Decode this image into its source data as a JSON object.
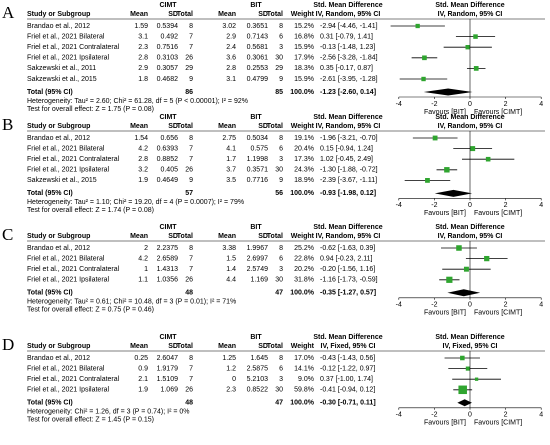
{
  "chart_data": [
    {
      "type": "forest",
      "label": "A",
      "groups": [
        "CIMT",
        "BIT"
      ],
      "columns": [
        "Study or Subgroup",
        "Mean",
        "SD",
        "Total",
        "Mean",
        "SD",
        "Total",
        "Weight"
      ],
      "effect_headers": [
        "Std. Mean Difference",
        "IV, Random, 95% CI"
      ],
      "plot_headers": [
        "Std. Mean Difference",
        "IV, Random, 95% CI"
      ],
      "studies": [
        {
          "name": "Brandao et al., 2012",
          "cimt": [
            1.59,
            0.5394,
            8
          ],
          "bit": [
            3.02,
            0.3651,
            8
          ],
          "weight": 15.2,
          "weight_label": "15.2%",
          "smd": -2.94,
          "ci": [
            -4.46,
            -1.41
          ],
          "ci_label": "-2.94 [-4.46, -1.41]"
        },
        {
          "name": "Friel et al., 2021 Bilateral",
          "cimt": [
            3.1,
            0.492,
            7
          ],
          "bit": [
            2.9,
            0.7143,
            6
          ],
          "weight": 16.8,
          "weight_label": "16.8%",
          "smd": 0.31,
          "ci": [
            -0.79,
            1.41
          ],
          "ci_label": "0.31 [-0.79, 1.41]"
        },
        {
          "name": "Friel et al., 2021 Contralateral",
          "cimt": [
            2.3,
            0.7516,
            7
          ],
          "bit": [
            2.4,
            0.5681,
            3
          ],
          "weight": 15.9,
          "weight_label": "15.9%",
          "smd": -0.13,
          "ci": [
            -1.48,
            1.23
          ],
          "ci_label": "-0.13 [-1.48, 1.23]"
        },
        {
          "name": "Friel et al., 2021 Ipsilateral",
          "cimt": [
            2.8,
            0.3103,
            26
          ],
          "bit": [
            3.6,
            0.3061,
            30
          ],
          "weight": 17.9,
          "weight_label": "17.9%",
          "smd": -2.56,
          "ci": [
            -3.28,
            -1.84
          ],
          "ci_label": "-2.56 [-3.28, -1.84]"
        },
        {
          "name": "Sakzewski et al., 2011",
          "cimt": [
            2.9,
            0.3057,
            29
          ],
          "bit": [
            2.8,
            0.2553,
            29
          ],
          "weight": 18.3,
          "weight_label": "18.3%",
          "smd": 0.35,
          "ci": [
            -0.17,
            0.87
          ],
          "ci_label": "0.35 [-0.17, 0.87]"
        },
        {
          "name": "Sakzewski et al., 2015",
          "cimt": [
            1.8,
            0.4682,
            9
          ],
          "bit": [
            3.1,
            0.4799,
            9
          ],
          "weight": 15.9,
          "weight_label": "15.9%",
          "smd": -2.61,
          "ci": [
            -3.95,
            -1.28
          ],
          "ci_label": "-2.61 [-3.95, -1.28]"
        }
      ],
      "total": {
        "name": "Total (95% CI)",
        "cimt_total": 86,
        "bit_total": 85,
        "weight": 100.0,
        "weight_label": "100.0%",
        "smd": -1.23,
        "ci": [
          -2.6,
          0.14
        ],
        "ci_label": "-1.23 [-2.60, 0.14]"
      },
      "heterogeneity": "Heterogeneity: Tau² = 2.60; Chi² = 61.28, df = 5 (P < 0.00001); I² = 92%",
      "overall_effect": "Test for overall effect: Z = 1.75 (P = 0.08)",
      "xlim": [
        -4,
        4
      ],
      "xticks": [
        -4,
        -2,
        0,
        2,
        4
      ],
      "favours": [
        "Favours [BIT]",
        "Favours [CIMT]"
      ]
    },
    {
      "type": "forest",
      "label": "B",
      "groups": [
        "CIMT",
        "BIT"
      ],
      "columns": [
        "Study or Subgroup",
        "Mean",
        "SD",
        "Total",
        "Mean",
        "SD",
        "Total",
        "Weight"
      ],
      "effect_headers": [
        "Std. Mean Difference",
        "IV, Random, 95% CI"
      ],
      "plot_headers": [
        "Std. Mean Difference",
        "IV, Random, 95% CI"
      ],
      "studies": [
        {
          "name": "Brandao et al., 2012",
          "cimt": [
            1.54,
            0.656,
            8
          ],
          "bit": [
            2.75,
            0.5034,
            8
          ],
          "weight": 19.1,
          "weight_label": "19.1%",
          "smd": -1.96,
          "ci": [
            -3.21,
            -0.7
          ],
          "ci_label": "-1.96 [-3.21, -0.70]"
        },
        {
          "name": "Friel et al., 2021 Bilateral",
          "cimt": [
            4.2,
            0.6393,
            7
          ],
          "bit": [
            4.1,
            0.575,
            6
          ],
          "weight": 20.4,
          "weight_label": "20.4%",
          "smd": 0.15,
          "ci": [
            -0.94,
            1.24
          ],
          "ci_label": "0.15 [-0.94, 1.24]"
        },
        {
          "name": "Friel et al., 2021 Contralateral",
          "cimt": [
            2.8,
            0.8852,
            7
          ],
          "bit": [
            1.7,
            1.1998,
            3
          ],
          "weight": 17.3,
          "weight_label": "17.3%",
          "smd": 1.02,
          "ci": [
            -0.45,
            2.49
          ],
          "ci_label": "1.02 [-0.45, 2.49]"
        },
        {
          "name": "Friel et al., 2021 Ipsilateral",
          "cimt": [
            3.2,
            0.405,
            26
          ],
          "bit": [
            3.7,
            0.3571,
            30
          ],
          "weight": 24.3,
          "weight_label": "24.3%",
          "smd": -1.3,
          "ci": [
            -1.88,
            -0.72
          ],
          "ci_label": "-1.30 [-1.88, -0.72]"
        },
        {
          "name": "Sakzewski et al., 2015",
          "cimt": [
            1.9,
            0.4649,
            9
          ],
          "bit": [
            3.5,
            0.7716,
            9
          ],
          "weight": 18.9,
          "weight_label": "18.9%",
          "smd": -2.39,
          "ci": [
            -3.67,
            -1.11
          ],
          "ci_label": "-2.39 [-3.67, -1.11]"
        }
      ],
      "total": {
        "name": "Total (95% CI)",
        "cimt_total": 57,
        "bit_total": 56,
        "weight": 100.0,
        "weight_label": "100.0%",
        "smd": -0.93,
        "ci": [
          -1.98,
          0.12
        ],
        "ci_label": "-0.93 [-1.98, 0.12]"
      },
      "heterogeneity": "Heterogeneity: Tau² = 1.10; Chi² = 19.20, df = 4 (P = 0.0007); I² = 79%",
      "overall_effect": "Test for overall effect: Z = 1.74 (P = 0.08)",
      "xlim": [
        -4,
        4
      ],
      "xticks": [
        -4,
        -2,
        0,
        2,
        4
      ],
      "favours": [
        "Favours [BIT]",
        "Favours [CIMT]"
      ]
    },
    {
      "type": "forest",
      "label": "C",
      "groups": [
        "CIMT",
        "BIT"
      ],
      "columns": [
        "Study or Subgroup",
        "Mean",
        "SD",
        "Total",
        "Mean",
        "SD",
        "Total",
        "Weight"
      ],
      "effect_headers": [
        "Std. Mean Difference",
        "IV, Random, 95% CI"
      ],
      "plot_headers": [
        "Std. Mean Difference",
        "IV, Random, 95% CI"
      ],
      "studies": [
        {
          "name": "Brandao et al., 2012",
          "cimt": [
            2,
            2.2375,
            8
          ],
          "bit": [
            3.38,
            1.9967,
            8
          ],
          "weight": 25.2,
          "weight_label": "25.2%",
          "smd": -0.62,
          "ci": [
            -1.63,
            0.39
          ],
          "ci_label": "-0.62 [-1.63, 0.39]"
        },
        {
          "name": "Friel et al., 2021 Bilateral",
          "cimt": [
            4.2,
            2.6589,
            7
          ],
          "bit": [
            1.5,
            2.6997,
            6
          ],
          "weight": 22.8,
          "weight_label": "22.8%",
          "smd": 0.94,
          "ci": [
            -0.23,
            2.11
          ],
          "ci_label": "0.94 [-0.23, 2.11]"
        },
        {
          "name": "Friel et al., 2021 Contralateral",
          "cimt": [
            1,
            1.4313,
            7
          ],
          "bit": [
            1.4,
            2.5749,
            3
          ],
          "weight": 20.2,
          "weight_label": "20.2%",
          "smd": -0.2,
          "ci": [
            -1.56,
            1.16
          ],
          "ci_label": "-0.20 [-1.56, 1.16]"
        },
        {
          "name": "Friel et al., 2021 Ipsilateral",
          "cimt": [
            1.1,
            1.0356,
            26
          ],
          "bit": [
            4.4,
            1.169,
            30
          ],
          "weight": 31.8,
          "weight_label": "31.8%",
          "smd": -1.16,
          "ci": [
            -1.73,
            -0.59
          ],
          "ci_label": "-1.16 [-1.73, -0.59]"
        }
      ],
      "total": {
        "name": "Total (95% CI)",
        "cimt_total": 48,
        "bit_total": 47,
        "weight": 100.0,
        "weight_label": "100.0%",
        "smd": -0.35,
        "ci": [
          -1.27,
          0.57
        ],
        "ci_label": "-0.35 [-1.27, 0.57]"
      },
      "heterogeneity": "Heterogeneity: Tau² = 0.61; Chi² = 10.48, df = 3 (P = 0.01); I² = 71%",
      "overall_effect": "Test for overall effect: Z = 0.75 (P = 0.46)",
      "xlim": [
        -4,
        4
      ],
      "xticks": [
        -4,
        -2,
        0,
        2,
        4
      ],
      "favours": [
        "Favours [BIT]",
        "Favours [CIMT]"
      ]
    },
    {
      "type": "forest",
      "label": "D",
      "groups": [
        "CIMT",
        "BIT"
      ],
      "columns": [
        "Study or Subgroup",
        "Mean",
        "SD",
        "Total",
        "Mean",
        "SD",
        "Total",
        "Weight"
      ],
      "effect_headers": [
        "Std. Mean Difference",
        "IV, Fixed, 95% CI"
      ],
      "plot_headers": [
        "Std. Mean Difference",
        "IV, Fixed, 95% CI"
      ],
      "studies": [
        {
          "name": "Brandao et al., 2012",
          "cimt": [
            0.25,
            2.6047,
            8
          ],
          "bit": [
            1.25,
            1.645,
            8
          ],
          "weight": 17.0,
          "weight_label": "17.0%",
          "smd": -0.43,
          "ci": [
            -1.43,
            0.56
          ],
          "ci_label": "-0.43 [-1.43, 0.56]"
        },
        {
          "name": "Friel et al., 2021 Bilateral",
          "cimt": [
            0.9,
            1.9179,
            7
          ],
          "bit": [
            1.2,
            2.5875,
            6
          ],
          "weight": 14.1,
          "weight_label": "14.1%",
          "smd": -0.12,
          "ci": [
            -1.22,
            0.97
          ],
          "ci_label": "-0.12 [-1.22, 0.97]"
        },
        {
          "name": "Friel et al., 2021 Contralateral",
          "cimt": [
            2.1,
            1.5109,
            7
          ],
          "bit": [
            0,
            5.2103,
            3
          ],
          "weight": 9.0,
          "weight_label": "9.0%",
          "smd": 0.37,
          "ci": [
            -1.0,
            1.74
          ],
          "ci_label": "0.37 [-1.00, 1.74]"
        },
        {
          "name": "Friel et al., 2021 Ipsilateral",
          "cimt": [
            1.9,
            1.069,
            26
          ],
          "bit": [
            2.3,
            0.8522,
            30
          ],
          "weight": 59.8,
          "weight_label": "59.8%",
          "smd": -0.41,
          "ci": [
            -0.94,
            0.12
          ],
          "ci_label": "-0.41 [-0.94, 0.12]"
        }
      ],
      "total": {
        "name": "Total (95% CI)",
        "cimt_total": 48,
        "bit_total": 47,
        "weight": 100.0,
        "weight_label": "100.0%",
        "smd": -0.3,
        "ci": [
          -0.71,
          0.11
        ],
        "ci_label": "-0.30 [-0.71, 0.11]"
      },
      "heterogeneity": "Heterogeneity: Chi² = 1.26, df = 3 (P = 0.74); I² = 0%",
      "overall_effect": "Test for overall effect: Z = 1.45 (P = 0.15)",
      "xlim": [
        -4,
        4
      ],
      "xticks": [
        -4,
        -2,
        0,
        2,
        4
      ],
      "favours": [
        "Favours [BIT]",
        "Favours [CIMT]"
      ]
    }
  ]
}
